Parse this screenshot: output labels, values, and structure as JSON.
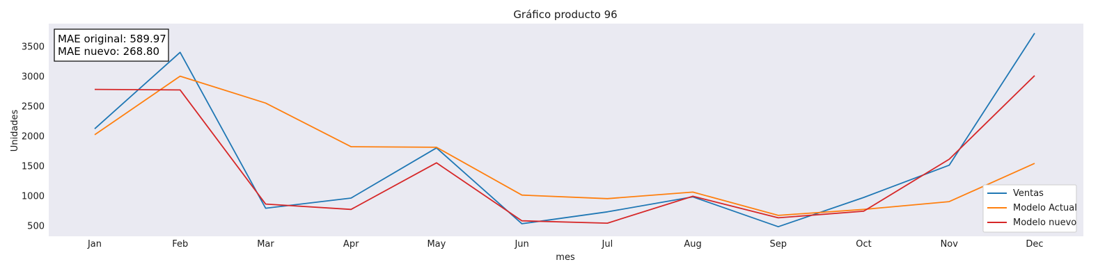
{
  "chart_data": {
    "type": "line",
    "title": "Gráfico producto 96",
    "xlabel": "mes",
    "ylabel": "Unidades",
    "categories": [
      "Jan",
      "Feb",
      "Mar",
      "Apr",
      "May",
      "Jun",
      "Jul",
      "Aug",
      "Sep",
      "Oct",
      "Nov",
      "Dec"
    ],
    "yticks": [
      500,
      1000,
      1500,
      2000,
      2500,
      3000,
      3500
    ],
    "ylim": [
      320,
      3880
    ],
    "grid": false,
    "legend_position": "lower-right",
    "series": [
      {
        "name": "Ventas",
        "color": "#1f77b4",
        "values": [
          2120,
          3400,
          790,
          960,
          1800,
          530,
          730,
          980,
          480,
          970,
          1510,
          3720
        ]
      },
      {
        "name": "Modelo Actual",
        "color": "#ff7f0e",
        "values": [
          2020,
          3000,
          2550,
          1820,
          1810,
          1010,
          950,
          1060,
          670,
          770,
          900,
          1540
        ]
      },
      {
        "name": "Modelo nuevo",
        "color": "#d62728",
        "values": [
          2780,
          2770,
          860,
          770,
          1550,
          580,
          540,
          990,
          630,
          740,
          1610,
          3010
        ]
      }
    ],
    "annotations": [
      "MAE original: 589.97",
      "MAE nuevo: 268.80"
    ]
  },
  "colors": {
    "plot_background": "#eaeaf2"
  }
}
